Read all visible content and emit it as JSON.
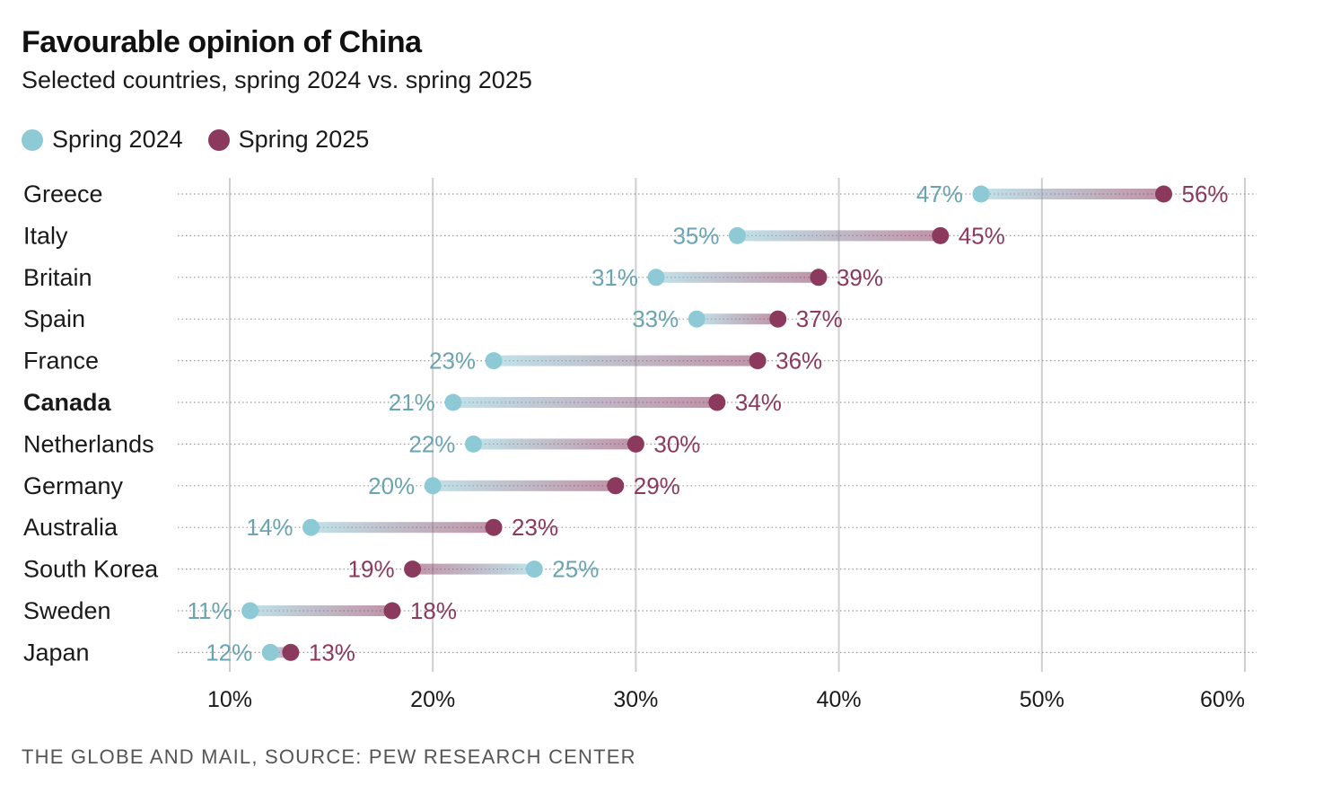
{
  "title": "Favourable opinion of China",
  "subtitle": "Selected countries, spring 2024 vs. spring 2025",
  "source": "THE GLOBE AND MAIL, SOURCE: PEW RESEARCH CENTER",
  "colors": {
    "spring_2024": "#8ecad6",
    "spring_2025": "#8b3a5e",
    "label_2024": "#6aa4b2",
    "label_2025": "#8b3a5e"
  },
  "chart_data": {
    "type": "dumbbell",
    "title": "Favourable opinion of China",
    "subtitle": "Selected countries, spring 2024 vs. spring 2025",
    "xlim": [
      10,
      60
    ],
    "x_ticks": [
      10,
      20,
      30,
      40,
      50,
      60
    ],
    "x_tick_labels": [
      "10%",
      "20%",
      "30%",
      "40%",
      "50%",
      "60%"
    ],
    "grid": true,
    "legend_position": "top-left",
    "series": [
      {
        "name": "Spring 2024",
        "key": "spring_2024"
      },
      {
        "name": "Spring 2025",
        "key": "spring_2025"
      }
    ],
    "categories": [
      "Greece",
      "Italy",
      "Britain",
      "Spain",
      "France",
      "Canada",
      "Netherlands",
      "Germany",
      "Australia",
      "South Korea",
      "Sweden",
      "Japan"
    ],
    "highlight": "Canada",
    "rows": [
      {
        "country": "Greece",
        "spring_2024": 47,
        "spring_2025": 56,
        "label_2024": "47%",
        "label_2025": "56%"
      },
      {
        "country": "Italy",
        "spring_2024": 35,
        "spring_2025": 45,
        "label_2024": "35%",
        "label_2025": "45%"
      },
      {
        "country": "Britain",
        "spring_2024": 31,
        "spring_2025": 39,
        "label_2024": "31%",
        "label_2025": "39%"
      },
      {
        "country": "Spain",
        "spring_2024": 33,
        "spring_2025": 37,
        "label_2024": "33%",
        "label_2025": "37%"
      },
      {
        "country": "France",
        "spring_2024": 23,
        "spring_2025": 36,
        "label_2024": "23%",
        "label_2025": "36%"
      },
      {
        "country": "Canada",
        "spring_2024": 21,
        "spring_2025": 34,
        "label_2024": "21%",
        "label_2025": "34%"
      },
      {
        "country": "Netherlands",
        "spring_2024": 22,
        "spring_2025": 30,
        "label_2024": "22%",
        "label_2025": "30%"
      },
      {
        "country": "Germany",
        "spring_2024": 20,
        "spring_2025": 29,
        "label_2024": "20%",
        "label_2025": "29%"
      },
      {
        "country": "Australia",
        "spring_2024": 14,
        "spring_2025": 23,
        "label_2024": "14%",
        "label_2025": "23%"
      },
      {
        "country": "South Korea",
        "spring_2024": 25,
        "spring_2025": 19,
        "label_2024": "25%",
        "label_2025": "19%"
      },
      {
        "country": "Sweden",
        "spring_2024": 11,
        "spring_2025": 18,
        "label_2024": "11%",
        "label_2025": "18%"
      },
      {
        "country": "Japan",
        "spring_2024": 12,
        "spring_2025": 13,
        "label_2024": "12%",
        "label_2025": "13%"
      }
    ]
  }
}
